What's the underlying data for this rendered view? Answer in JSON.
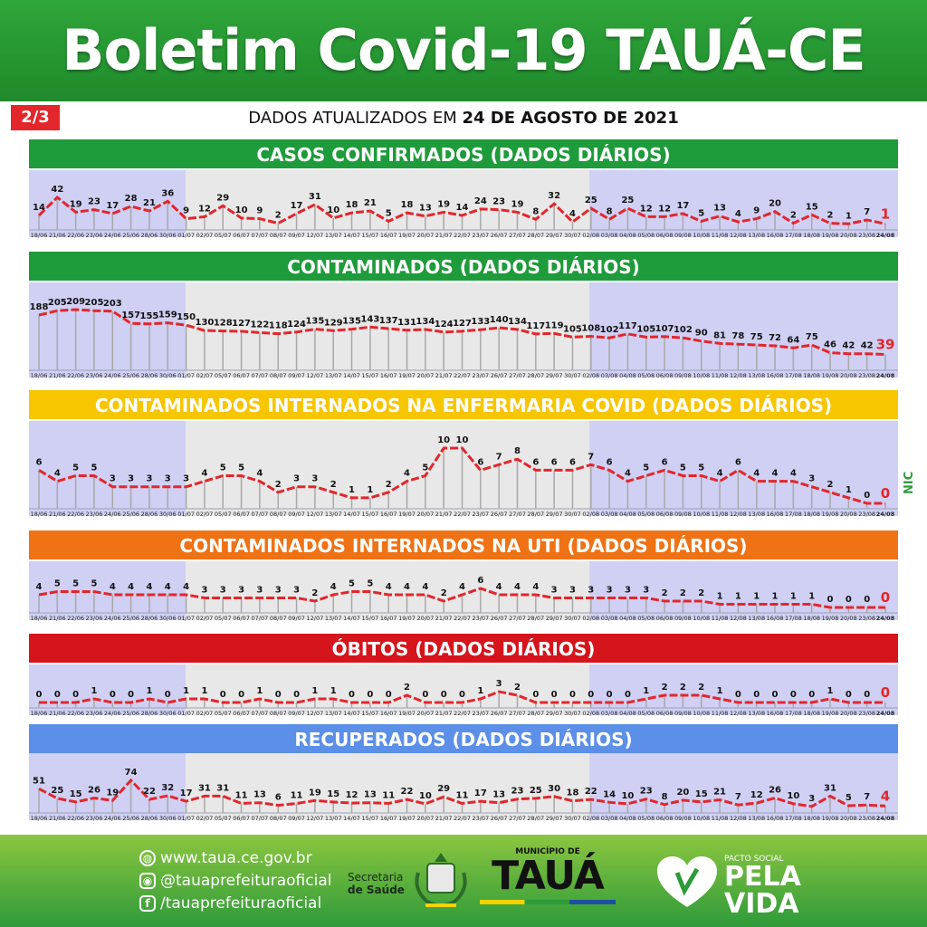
{
  "header": {
    "title": "Boletim Covid-19 TAUÁ-CE",
    "page": "2/3",
    "update_prefix": "DADOS ATUALIZADOS EM",
    "update_date": "24 DE AGOSTO DE 2021"
  },
  "colors": {
    "header_green": "#22932f",
    "line_red": "#e3262b",
    "band_blue": "#cfd0f3",
    "band_gray": "#e8e8e8",
    "bg_green": "#1e9b3a",
    "bg_yellow": "#f7c600",
    "bg_orange": "#ef7215",
    "bg_red": "#d6141c",
    "bg_lightblue": "#5b8fe8"
  },
  "chart_data": [
    {
      "type": "line",
      "title": "CASOS CONFIRMADOS  (DADOS DIÁRIOS)",
      "x": [
        "18/06",
        "21/06",
        "22/06",
        "23/06",
        "24/06",
        "25/06",
        "28/06",
        "30/06",
        "01/07",
        "02/07",
        "05/07",
        "06/07",
        "07/07",
        "08/07",
        "09/07",
        "12/07",
        "13/07",
        "14/07",
        "15/07",
        "16/07",
        "19/07",
        "20/07",
        "21/07",
        "22/07",
        "23/07",
        "26/07",
        "27/07",
        "28/07",
        "29/07",
        "30/07",
        "02/08",
        "03/08",
        "04/08",
        "05/08",
        "06/08",
        "09/08",
        "10/08",
        "11/08",
        "12/08",
        "13/08",
        "16/08",
        "17/08",
        "18/08",
        "19/08",
        "20/08",
        "23/08",
        "24/08"
      ],
      "values": [
        14,
        42,
        19,
        23,
        17,
        28,
        21,
        36,
        9,
        12,
        29,
        10,
        9,
        2,
        17,
        31,
        10,
        18,
        21,
        5,
        18,
        13,
        19,
        14,
        24,
        23,
        19,
        8,
        32,
        4,
        25,
        8,
        25,
        12,
        12,
        17,
        5,
        13,
        4,
        9,
        20,
        2,
        15,
        2,
        1,
        7,
        1
      ]
    },
    {
      "type": "line",
      "title": "CONTAMINADOS  (DADOS DIÁRIOS)",
      "x": [
        "18/06",
        "21/06",
        "22/06",
        "23/06",
        "24/06",
        "25/06",
        "28/06",
        "30/06",
        "01/07",
        "02/07",
        "05/07",
        "06/07",
        "07/07",
        "08/07",
        "09/07",
        "12/07",
        "13/07",
        "14/07",
        "15/07",
        "16/07",
        "19/07",
        "20/07",
        "21/07",
        "22/07",
        "23/07",
        "26/07",
        "27/07",
        "28/07",
        "29/07",
        "30/07",
        "02/08",
        "03/08",
        "04/08",
        "05/08",
        "06/08",
        "09/08",
        "10/08",
        "11/08",
        "12/08",
        "13/08",
        "16/08",
        "17/08",
        "18/08",
        "19/08",
        "20/08",
        "23/08",
        "24/08"
      ],
      "values": [
        188,
        205,
        209,
        205,
        203,
        157,
        155,
        159,
        150,
        130,
        128,
        127,
        122,
        118,
        124,
        135,
        129,
        135,
        143,
        137,
        131,
        134,
        124,
        127,
        133,
        140,
        134,
        117,
        119,
        105,
        108,
        102,
        117,
        105,
        107,
        102,
        90,
        81,
        78,
        75,
        72,
        64,
        75,
        46,
        42,
        42,
        39
      ]
    },
    {
      "type": "line",
      "title": "CONTAMINADOS INTERNADOS NA ENFERMARIA COVID  (DADOS DIÁRIOS)",
      "x": [
        "18/06",
        "21/06",
        "22/06",
        "23/06",
        "24/06",
        "25/06",
        "28/06",
        "30/06",
        "01/07",
        "02/07",
        "05/07",
        "06/07",
        "07/07",
        "08/07",
        "09/07",
        "12/07",
        "13/07",
        "14/07",
        "15/07",
        "16/07",
        "19/07",
        "20/07",
        "21/07",
        "22/07",
        "23/07",
        "26/07",
        "27/07",
        "28/07",
        "29/07",
        "30/07",
        "02/08",
        "03/08",
        "04/08",
        "05/08",
        "06/08",
        "09/08",
        "10/08",
        "11/08",
        "12/08",
        "13/08",
        "16/08",
        "17/08",
        "18/08",
        "19/08",
        "20/08",
        "23/08",
        "24/08"
      ],
      "values": [
        6,
        4,
        5,
        5,
        3,
        3,
        3,
        3,
        3,
        4,
        5,
        5,
        4,
        2,
        3,
        3,
        2,
        1,
        1,
        2,
        4,
        5,
        10,
        10,
        6,
        7,
        8,
        6,
        6,
        6,
        7,
        6,
        4,
        5,
        6,
        5,
        5,
        4,
        6,
        4,
        4,
        4,
        3,
        2,
        1,
        0,
        0
      ]
    },
    {
      "type": "line",
      "title": "CONTAMINADOS INTERNADOS NA UTI  (DADOS DIÁRIOS)",
      "x": [
        "18/06",
        "21/06",
        "22/06",
        "23/06",
        "24/06",
        "25/06",
        "28/06",
        "30/06",
        "01/07",
        "02/07",
        "05/07",
        "06/07",
        "07/07",
        "08/07",
        "09/07",
        "12/07",
        "13/07",
        "14/07",
        "15/07",
        "16/07",
        "19/07",
        "20/07",
        "21/07",
        "22/07",
        "23/07",
        "26/07",
        "27/07",
        "28/07",
        "29/07",
        "30/07",
        "02/08",
        "03/08",
        "04/08",
        "05/08",
        "06/08",
        "09/08",
        "10/08",
        "11/08",
        "12/08",
        "13/08",
        "16/08",
        "17/08",
        "18/08",
        "19/08",
        "20/08",
        "23/08",
        "24/08"
      ],
      "values": [
        4,
        5,
        5,
        5,
        4,
        4,
        4,
        4,
        4,
        3,
        3,
        3,
        3,
        3,
        3,
        2,
        4,
        5,
        5,
        4,
        4,
        4,
        2,
        4,
        6,
        4,
        4,
        4,
        3,
        3,
        3,
        3,
        3,
        3,
        2,
        2,
        2,
        1,
        1,
        1,
        1,
        1,
        1,
        0,
        0,
        0,
        0
      ]
    },
    {
      "type": "line",
      "title": "ÓBITOS  (DADOS DIÁRIOS)",
      "x": [
        "18/06",
        "21/06",
        "22/06",
        "23/06",
        "24/06",
        "25/06",
        "28/06",
        "30/06",
        "01/07",
        "02/07",
        "05/07",
        "06/07",
        "07/07",
        "08/07",
        "09/07",
        "12/07",
        "13/07",
        "14/07",
        "15/07",
        "16/07",
        "19/07",
        "20/07",
        "21/07",
        "22/07",
        "23/07",
        "26/07",
        "27/07",
        "28/07",
        "29/07",
        "30/07",
        "02/08",
        "03/08",
        "04/08",
        "05/08",
        "06/08",
        "09/08",
        "10/08",
        "11/08",
        "12/08",
        "13/08",
        "16/08",
        "17/08",
        "18/08",
        "19/08",
        "20/08",
        "23/08",
        "24/08"
      ],
      "values": [
        0,
        0,
        0,
        1,
        0,
        0,
        1,
        0,
        1,
        1,
        0,
        0,
        1,
        0,
        0,
        1,
        1,
        0,
        0,
        0,
        2,
        0,
        0,
        0,
        1,
        3,
        2,
        0,
        0,
        0,
        0,
        0,
        0,
        1,
        2,
        2,
        2,
        1,
        0,
        0,
        0,
        0,
        0,
        1,
        0,
        0,
        0
      ]
    },
    {
      "type": "line",
      "title": "RECUPERADOS (DADOS DIÁRIOS)",
      "x": [
        "18/06",
        "21/06",
        "22/06",
        "23/06",
        "24/06",
        "25/06",
        "28/06",
        "30/06",
        "01/07",
        "02/07",
        "05/07",
        "06/07",
        "07/07",
        "08/07",
        "09/07",
        "12/07",
        "13/07",
        "14/07",
        "15/07",
        "16/07",
        "19/07",
        "20/07",
        "21/07",
        "22/07",
        "23/07",
        "26/07",
        "27/07",
        "28/07",
        "29/07",
        "30/07",
        "02/08",
        "03/08",
        "04/08",
        "05/08",
        "06/08",
        "09/08",
        "10/08",
        "11/08",
        "12/08",
        "13/08",
        "16/08",
        "17/08",
        "18/08",
        "19/08",
        "20/08",
        "23/08",
        "24/08"
      ],
      "values": [
        51,
        25,
        15,
        26,
        19,
        74,
        22,
        32,
        17,
        31,
        31,
        11,
        13,
        6,
        11,
        19,
        15,
        12,
        13,
        11,
        22,
        10,
        29,
        11,
        17,
        13,
        23,
        25,
        30,
        18,
        22,
        14,
        10,
        23,
        8,
        20,
        15,
        21,
        7,
        12,
        26,
        10,
        3,
        31,
        5,
        7,
        4
      ]
    }
  ],
  "footer": {
    "website": "www.taua.ce.gov.br",
    "instagram": "@tauaprefeituraoficial",
    "facebook": "/tauaprefeituraoficial",
    "secretaria_line1": "Secretaria",
    "secretaria_line2": "de Saúde",
    "municipio_small": "MUNICÍPIO DE",
    "municipio_name": "TAUÁ",
    "pacto_small": "PACTO SOCIAL",
    "pacto_line1": "PELA",
    "pacto_line2": "VIDA"
  }
}
